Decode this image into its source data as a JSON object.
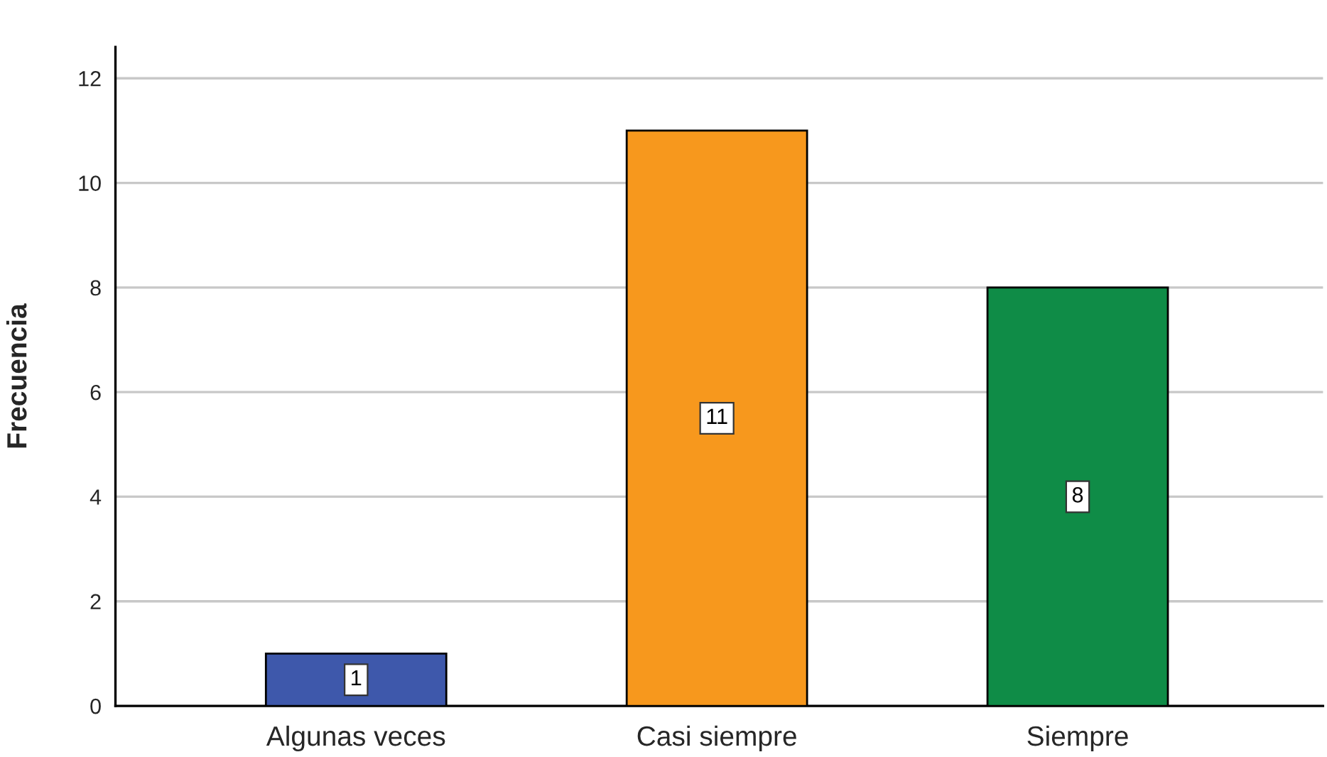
{
  "chart_data": {
    "type": "bar",
    "ylabel": "Frecuencia",
    "categories": [
      "Algunas veces",
      "Casi siempre",
      "Siempre"
    ],
    "values": [
      1,
      11,
      8
    ],
    "colors": [
      "#3e58ab",
      "#f7981d",
      "#0f8c47"
    ],
    "ylim": [
      0,
      12.6
    ],
    "yticks": [
      0,
      2,
      4,
      6,
      8,
      10,
      12
    ],
    "grid": "y",
    "data_labels": true
  }
}
